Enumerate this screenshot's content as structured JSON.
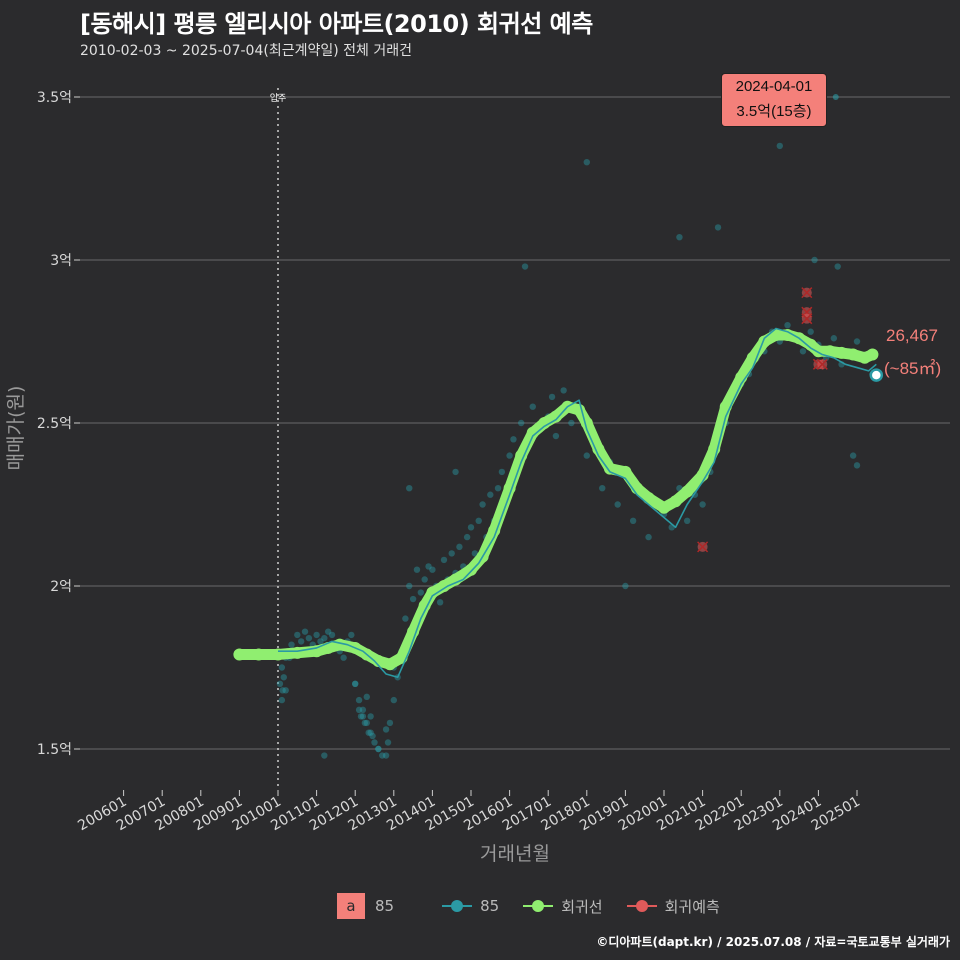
{
  "header": {
    "title": "[동해시] 평릉 엘리시아 아파트(2010) 회귀선 예측",
    "subtitle": "2010-02-03 ~ 2025-07-04(최근계약일) 전체 거래건"
  },
  "caption": "©디아파트(dapt.kr) / 2025.07.08 / 자료=국토교통부 실거래가",
  "annotation": {
    "date": "2024-04-01",
    "price_floor": "3.5억(15층)",
    "last_price": "26,467",
    "last_area": "(~85㎡)",
    "move_in_label": "입주"
  },
  "legend": {
    "box_letter": "a",
    "box_label": "85",
    "series_85": "85",
    "series_regression": "회귀선",
    "series_prediction": "회귀예측"
  },
  "colors": {
    "background": "#2b2b2d",
    "teal": "#2b9aa4",
    "green": "#90ee70",
    "red": "#e05a5a",
    "grid": "#6a6a6a",
    "accent": "#f4807a"
  },
  "chart_data": {
    "type": "line",
    "title": "[동해시] 평릉 엘리시아 아파트(2010) 회귀선 예측",
    "xlabel": "거래년월",
    "ylabel": "매매가(원)",
    "x_ticks": [
      "200601",
      "200701",
      "200801",
      "200901",
      "201001",
      "201101",
      "201201",
      "201301",
      "201401",
      "201501",
      "201601",
      "201701",
      "201801",
      "201901",
      "202001",
      "202101",
      "202201",
      "202301",
      "202401",
      "202501"
    ],
    "xlim": [
      2005.75,
      2027.0
    ],
    "ylim": [
      1.38,
      3.6
    ],
    "y_ticks": [
      {
        "v": 1.5,
        "label": "1.5억"
      },
      {
        "v": 2.0,
        "label": "2억"
      },
      {
        "v": 2.5,
        "label": "2.5억"
      },
      {
        "v": 3.0,
        "label": "3억"
      },
      {
        "v": 3.5,
        "label": "3.5억"
      }
    ],
    "move_in_x": 2010.0,
    "regression": {
      "name": "회귀선",
      "x": [
        2009.0,
        2009.5,
        2010.0,
        2010.5,
        2011.0,
        2011.3,
        2011.6,
        2012.0,
        2012.3,
        2012.6,
        2012.9,
        2013.2,
        2013.5,
        2013.8,
        2014.0,
        2014.3,
        2014.6,
        2015.0,
        2015.3,
        2015.6,
        2016.0,
        2016.3,
        2016.6,
        2016.9,
        2017.2,
        2017.5,
        2017.8,
        2018.0,
        2018.3,
        2018.6,
        2019.0,
        2019.3,
        2019.6,
        2020.0,
        2020.3,
        2020.6,
        2021.0,
        2021.3,
        2021.6,
        2022.0,
        2022.3,
        2022.6,
        2022.9,
        2023.2,
        2023.5,
        2023.8,
        2024.0,
        2024.3,
        2024.6,
        2024.9,
        2025.2,
        2025.4
      ],
      "values": [
        1.79,
        1.79,
        1.79,
        1.795,
        1.8,
        1.81,
        1.82,
        1.81,
        1.79,
        1.77,
        1.76,
        1.78,
        1.86,
        1.94,
        1.98,
        2.0,
        2.02,
        2.05,
        2.09,
        2.17,
        2.3,
        2.4,
        2.47,
        2.5,
        2.52,
        2.55,
        2.54,
        2.5,
        2.42,
        2.36,
        2.35,
        2.3,
        2.27,
        2.24,
        2.26,
        2.29,
        2.34,
        2.42,
        2.55,
        2.64,
        2.7,
        2.75,
        2.77,
        2.77,
        2.76,
        2.74,
        2.72,
        2.72,
        2.715,
        2.71,
        2.7,
        2.71
      ]
    },
    "series_85_line": {
      "name": "85",
      "x": [
        2010.0,
        2010.5,
        2011.0,
        2011.4,
        2011.8,
        2012.2,
        2012.5,
        2012.8,
        2013.1,
        2013.4,
        2013.7,
        2014.0,
        2014.4,
        2014.8,
        2015.2,
        2015.6,
        2016.0,
        2016.3,
        2016.6,
        2016.9,
        2017.2,
        2017.5,
        2017.8,
        2018.0,
        2018.3,
        2018.6,
        2019.0,
        2019.3,
        2019.6,
        2020.0,
        2020.3,
        2020.6,
        2021.0,
        2021.3,
        2021.6,
        2022.0,
        2022.3,
        2022.6,
        2022.9,
        2023.2,
        2023.5,
        2023.8,
        2024.1,
        2024.4,
        2024.7,
        2025.0,
        2025.3,
        2025.5
      ],
      "values": [
        1.8,
        1.8,
        1.81,
        1.83,
        1.82,
        1.8,
        1.77,
        1.73,
        1.72,
        1.8,
        1.9,
        1.97,
        2.0,
        2.02,
        2.07,
        2.15,
        2.28,
        2.38,
        2.46,
        2.49,
        2.51,
        2.55,
        2.57,
        2.48,
        2.4,
        2.35,
        2.33,
        2.28,
        2.25,
        2.21,
        2.18,
        2.25,
        2.32,
        2.38,
        2.52,
        2.62,
        2.67,
        2.76,
        2.79,
        2.78,
        2.76,
        2.73,
        2.71,
        2.7,
        2.68,
        2.67,
        2.66,
        2.68
      ]
    },
    "transactions": {
      "name": "85",
      "x": [
        2010.05,
        2010.1,
        2010.12,
        2010.15,
        2010.2,
        2010.25,
        2010.3,
        2010.35,
        2010.4,
        2010.5,
        2010.6,
        2010.7,
        2010.8,
        2010.9,
        2011.0,
        2011.1,
        2011.2,
        2011.3,
        2011.4,
        2011.5,
        2011.6,
        2011.7,
        2011.8,
        2011.9,
        2012.0,
        2012.1,
        2012.15,
        2012.2,
        2012.25,
        2012.3,
        2012.35,
        2012.4,
        2012.45,
        2012.5,
        2012.6,
        2012.7,
        2012.8,
        2012.85,
        2012.9,
        2013.0,
        2013.1,
        2013.2,
        2013.3,
        2013.4,
        2013.5,
        2013.6,
        2013.7,
        2013.8,
        2013.9,
        2014.0,
        2014.1,
        2014.2,
        2014.3,
        2014.4,
        2014.5,
        2014.6,
        2014.7,
        2014.8,
        2014.9,
        2015.0,
        2015.1,
        2015.2,
        2015.3,
        2015.4,
        2015.5,
        2015.6,
        2015.7,
        2015.8,
        2016.0,
        2016.1,
        2016.2,
        2016.3,
        2016.4,
        2016.6,
        2016.8,
        2017.0,
        2017.1,
        2017.2,
        2017.4,
        2017.6,
        2017.8,
        2018.0,
        2018.2,
        2018.4,
        2018.6,
        2018.8,
        2019.0,
        2019.2,
        2019.4,
        2019.6,
        2019.8,
        2020.0,
        2020.2,
        2020.4,
        2020.6,
        2020.8,
        2021.0,
        2021.2,
        2021.4,
        2021.6,
        2021.8,
        2022.0,
        2022.2,
        2022.4,
        2022.6,
        2022.8,
        2023.0,
        2023.2,
        2023.4,
        2023.6,
        2023.8,
        2024.0,
        2024.2,
        2024.4,
        2024.6,
        2024.8,
        2025.0,
        2025.2,
        2025.4,
        2012.0,
        2012.2,
        2012.4,
        2012.6,
        2012.8,
        2013.0,
        2012.1,
        2012.3,
        2010.1,
        2010.2,
        2011.2,
        2013.4,
        2014.6,
        2016.4,
        2018.0,
        2019.0,
        2020.4,
        2021.4,
        2023.0,
        2023.9,
        2024.5,
        2024.9,
        2025.0
      ],
      "values": [
        1.7,
        1.75,
        1.68,
        1.72,
        1.78,
        1.8,
        1.78,
        1.82,
        1.8,
        1.85,
        1.83,
        1.86,
        1.84,
        1.82,
        1.85,
        1.83,
        1.84,
        1.86,
        1.85,
        1.82,
        1.8,
        1.78,
        1.83,
        1.85,
        1.7,
        1.65,
        1.6,
        1.62,
        1.58,
        1.66,
        1.55,
        1.6,
        1.54,
        1.52,
        1.5,
        1.48,
        1.56,
        1.52,
        1.58,
        1.75,
        1.72,
        1.8,
        1.9,
        2.0,
        1.96,
        2.05,
        1.98,
        2.02,
        2.06,
        2.05,
        2.0,
        1.95,
        2.08,
        2.02,
        2.1,
        2.04,
        2.12,
        2.06,
        2.15,
        2.18,
        2.1,
        2.2,
        2.25,
        2.15,
        2.28,
        2.2,
        2.3,
        2.35,
        2.4,
        2.45,
        2.35,
        2.5,
        2.42,
        2.55,
        2.48,
        2.52,
        2.58,
        2.46,
        2.6,
        2.5,
        2.55,
        2.4,
        2.45,
        2.3,
        2.38,
        2.25,
        2.35,
        2.2,
        2.28,
        2.15,
        2.25,
        2.22,
        2.18,
        2.3,
        2.2,
        2.28,
        2.25,
        2.35,
        2.45,
        2.5,
        2.6,
        2.62,
        2.65,
        2.7,
        2.72,
        2.78,
        2.75,
        2.8,
        2.76,
        2.72,
        2.78,
        2.74,
        2.7,
        2.76,
        2.68,
        2.72,
        2.75,
        2.7,
        2.65,
        1.7,
        1.6,
        1.55,
        1.5,
        1.48,
        1.65,
        1.62,
        1.58,
        1.65,
        1.68,
        1.48,
        2.3,
        2.35,
        2.98,
        3.3,
        2.0,
        3.07,
        3.1,
        3.35,
        3.0,
        2.98,
        2.4,
        2.37
      ]
    },
    "prediction": {
      "name": "회귀예측",
      "x": [
        2021.0,
        2023.7,
        2023.7,
        2023.7,
        2024.0,
        2024.1
      ],
      "values": [
        2.12,
        2.9,
        2.84,
        2.82,
        2.68,
        2.68
      ]
    },
    "highlight_point": {
      "x": 2025.5,
      "value": 2.647
    }
  }
}
